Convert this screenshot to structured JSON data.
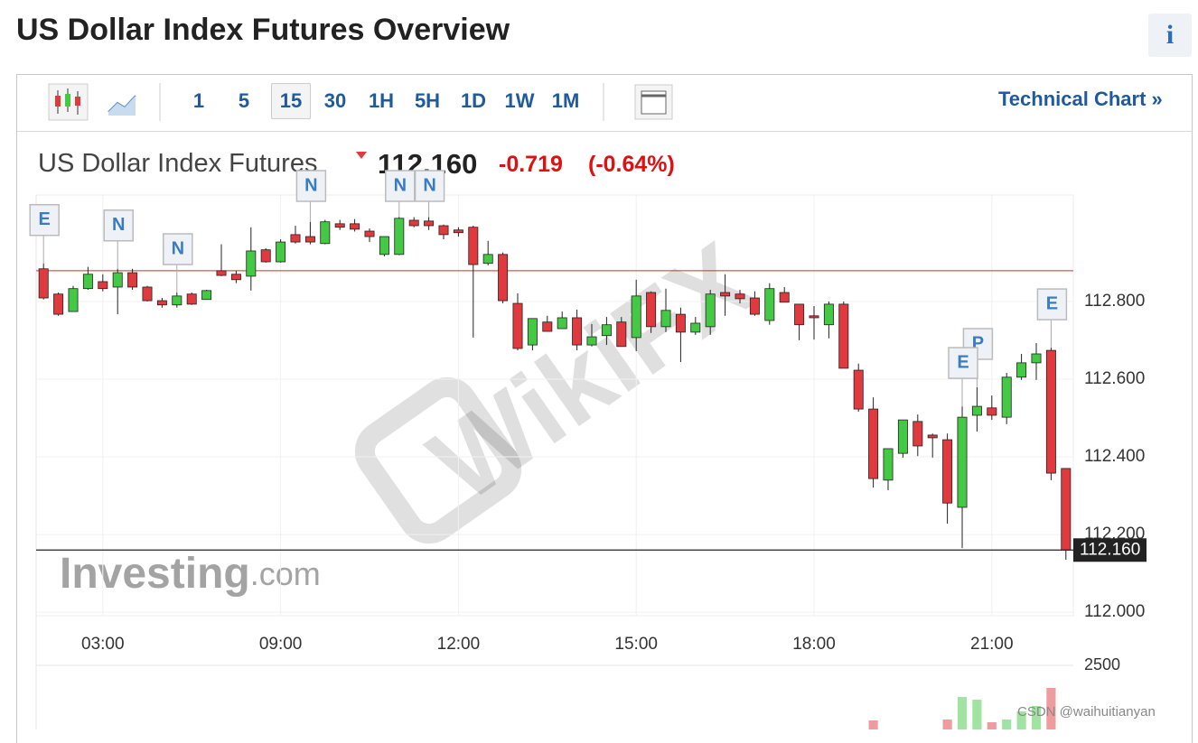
{
  "header": {
    "title": "US Dollar Index Futures Overview",
    "info": "i"
  },
  "toolbar": {
    "intervals": [
      "1",
      "5",
      "15",
      "30",
      "1H",
      "5H",
      "1D",
      "1W",
      "1M"
    ],
    "selected": 2,
    "link": "Technical Chart »"
  },
  "quote": {
    "name": "US Dollar Index Futures",
    "price": "112.160",
    "change": "-0.719",
    "change_percent": "(-0.64%)"
  },
  "chart_data": {
    "type": "candlestick",
    "open": [
      112.884,
      112.819,
      112.774,
      112.833,
      112.851,
      112.837,
      112.874,
      112.837,
      112.802,
      112.791,
      112.819,
      112.805,
      112.879,
      112.87,
      112.865,
      112.933,
      112.902,
      112.972,
      112.967,
      112.949,
      113.0,
      113.0,
      112.981,
      112.921,
      112.921,
      113.009,
      113.007,
      112.995,
      112.984,
      112.991,
      112.898,
      112.921,
      112.795,
      112.688,
      112.747,
      112.73,
      112.758,
      112.688,
      112.712,
      112.747,
      112.707,
      112.823,
      112.735,
      112.767,
      112.721,
      112.735,
      112.823,
      112.819,
      112.809,
      112.751,
      112.823,
      112.793,
      112.763,
      112.74,
      112.793,
      112.623,
      112.523,
      112.34,
      112.409,
      112.491,
      112.456,
      112.444,
      112.27,
      112.507,
      112.526,
      112.502,
      112.605,
      112.642,
      112.674,
      112.37
    ],
    "high": [
      112.898,
      112.823,
      112.84,
      112.889,
      112.87,
      112.884,
      112.884,
      112.84,
      112.809,
      112.823,
      112.823,
      112.83,
      112.947,
      112.879,
      112.991,
      112.937,
      112.96,
      112.995,
      113.005,
      113.01,
      113.01,
      113.012,
      112.988,
      112.967,
      113.017,
      113.017,
      113.017,
      112.998,
      112.991,
      112.995,
      112.956,
      112.926,
      112.821,
      112.756,
      112.763,
      112.774,
      112.779,
      112.742,
      112.76,
      112.76,
      112.856,
      112.826,
      112.833,
      112.784,
      112.76,
      112.83,
      112.87,
      112.83,
      112.826,
      112.847,
      112.837,
      112.793,
      112.788,
      112.8,
      112.8,
      112.64,
      112.553,
      112.421,
      112.495,
      112.509,
      112.46,
      112.46,
      112.53,
      112.579,
      112.558,
      112.616,
      112.665,
      112.693,
      112.681,
      112.37
    ],
    "low": [
      112.805,
      112.763,
      112.774,
      112.83,
      112.826,
      112.767,
      112.83,
      112.8,
      112.784,
      112.784,
      112.791,
      112.805,
      112.865,
      112.847,
      112.828,
      112.9,
      112.9,
      112.949,
      112.947,
      112.947,
      112.984,
      112.98,
      112.953,
      112.916,
      112.919,
      112.991,
      112.984,
      112.96,
      112.967,
      112.707,
      112.893,
      112.795,
      112.674,
      112.674,
      112.723,
      112.73,
      112.674,
      112.684,
      112.688,
      112.684,
      112.672,
      112.719,
      112.721,
      112.644,
      112.714,
      112.714,
      112.763,
      112.795,
      112.763,
      112.74,
      112.798,
      112.7,
      112.702,
      112.705,
      112.628,
      112.516,
      112.321,
      112.314,
      112.398,
      112.402,
      112.398,
      112.228,
      112.165,
      112.465,
      112.495,
      112.484,
      112.598,
      112.598,
      112.34,
      112.135
    ],
    "close": [
      112.809,
      112.767,
      112.833,
      112.87,
      112.833,
      112.874,
      112.837,
      112.802,
      112.791,
      112.814,
      112.793,
      112.828,
      112.867,
      112.856,
      112.93,
      112.902,
      112.953,
      112.953,
      112.953,
      113.005,
      112.991,
      112.986,
      112.967,
      112.967,
      113.014,
      112.995,
      112.995,
      112.972,
      112.977,
      112.895,
      112.921,
      112.802,
      112.679,
      112.756,
      112.723,
      112.758,
      112.688,
      112.709,
      112.74,
      112.684,
      112.814,
      112.735,
      112.777,
      112.721,
      112.744,
      112.819,
      112.814,
      112.807,
      112.767,
      112.833,
      112.798,
      112.74,
      112.758,
      112.793,
      112.628,
      112.523,
      112.344,
      112.421,
      112.495,
      112.428,
      112.449,
      112.281,
      112.502,
      112.53,
      112.507,
      112.605,
      112.642,
      112.665,
      112.358,
      112.16
    ],
    "volume": [
      null,
      null,
      null,
      null,
      null,
      null,
      null,
      null,
      null,
      null,
      null,
      null,
      null,
      null,
      null,
      null,
      null,
      null,
      null,
      null,
      null,
      null,
      null,
      null,
      null,
      null,
      null,
      null,
      null,
      null,
      null,
      null,
      null,
      null,
      null,
      null,
      null,
      null,
      null,
      null,
      null,
      null,
      null,
      null,
      null,
      null,
      null,
      null,
      null,
      null,
      null,
      null,
      null,
      null,
      null,
      null,
      706,
      null,
      null,
      null,
      null,
      735,
      1470,
      1382,
      647,
      735,
      1000,
      1176,
      1765,
      null
    ],
    "up_color": "#44c944",
    "down_color": "#e0393e",
    "xlim": [
      -0.5,
      69.5
    ],
    "xticks": [
      {
        "value": 4,
        "label": "03:00"
      },
      {
        "value": 16,
        "label": "09:00"
      },
      {
        "value": 28,
        "label": "12:00"
      },
      {
        "value": 40,
        "label": "15:00"
      },
      {
        "value": 52,
        "label": "18:00"
      },
      {
        "value": 64,
        "label": "21:00"
      }
    ],
    "ylim": [
      111.991,
      113.074
    ],
    "yticks": [
      {
        "value": 112.0,
        "label": "112.000"
      },
      {
        "value": 112.2,
        "label": "112.200"
      },
      {
        "value": 112.4,
        "label": "112.400"
      },
      {
        "value": 112.6,
        "label": "112.600"
      },
      {
        "value": 112.8,
        "label": "112.800"
      }
    ],
    "volume_ylim": [
      0,
      2500
    ],
    "volume_yticks": [
      2500
    ],
    "grid": true,
    "previous_close": 112.879,
    "previous_close_color": "#c9302c",
    "last_price": {
      "value": 112.16,
      "label": "112.160"
    },
    "markers": [
      {
        "index": 0,
        "label": "E"
      },
      {
        "index": 5,
        "label": "N"
      },
      {
        "index": 9,
        "label": "N"
      },
      {
        "index": 18,
        "label": "N"
      },
      {
        "index": 24,
        "label": "N"
      },
      {
        "index": 26,
        "label": "N"
      },
      {
        "index": 63,
        "label": "P"
      },
      {
        "index": 62,
        "label": "E"
      },
      {
        "index": 68,
        "label": "E"
      }
    ],
    "logo": "Investing",
    "logo_suffix": ".com",
    "watermark": "WikiFX"
  },
  "footer": "CSDN @waihuitianyan"
}
